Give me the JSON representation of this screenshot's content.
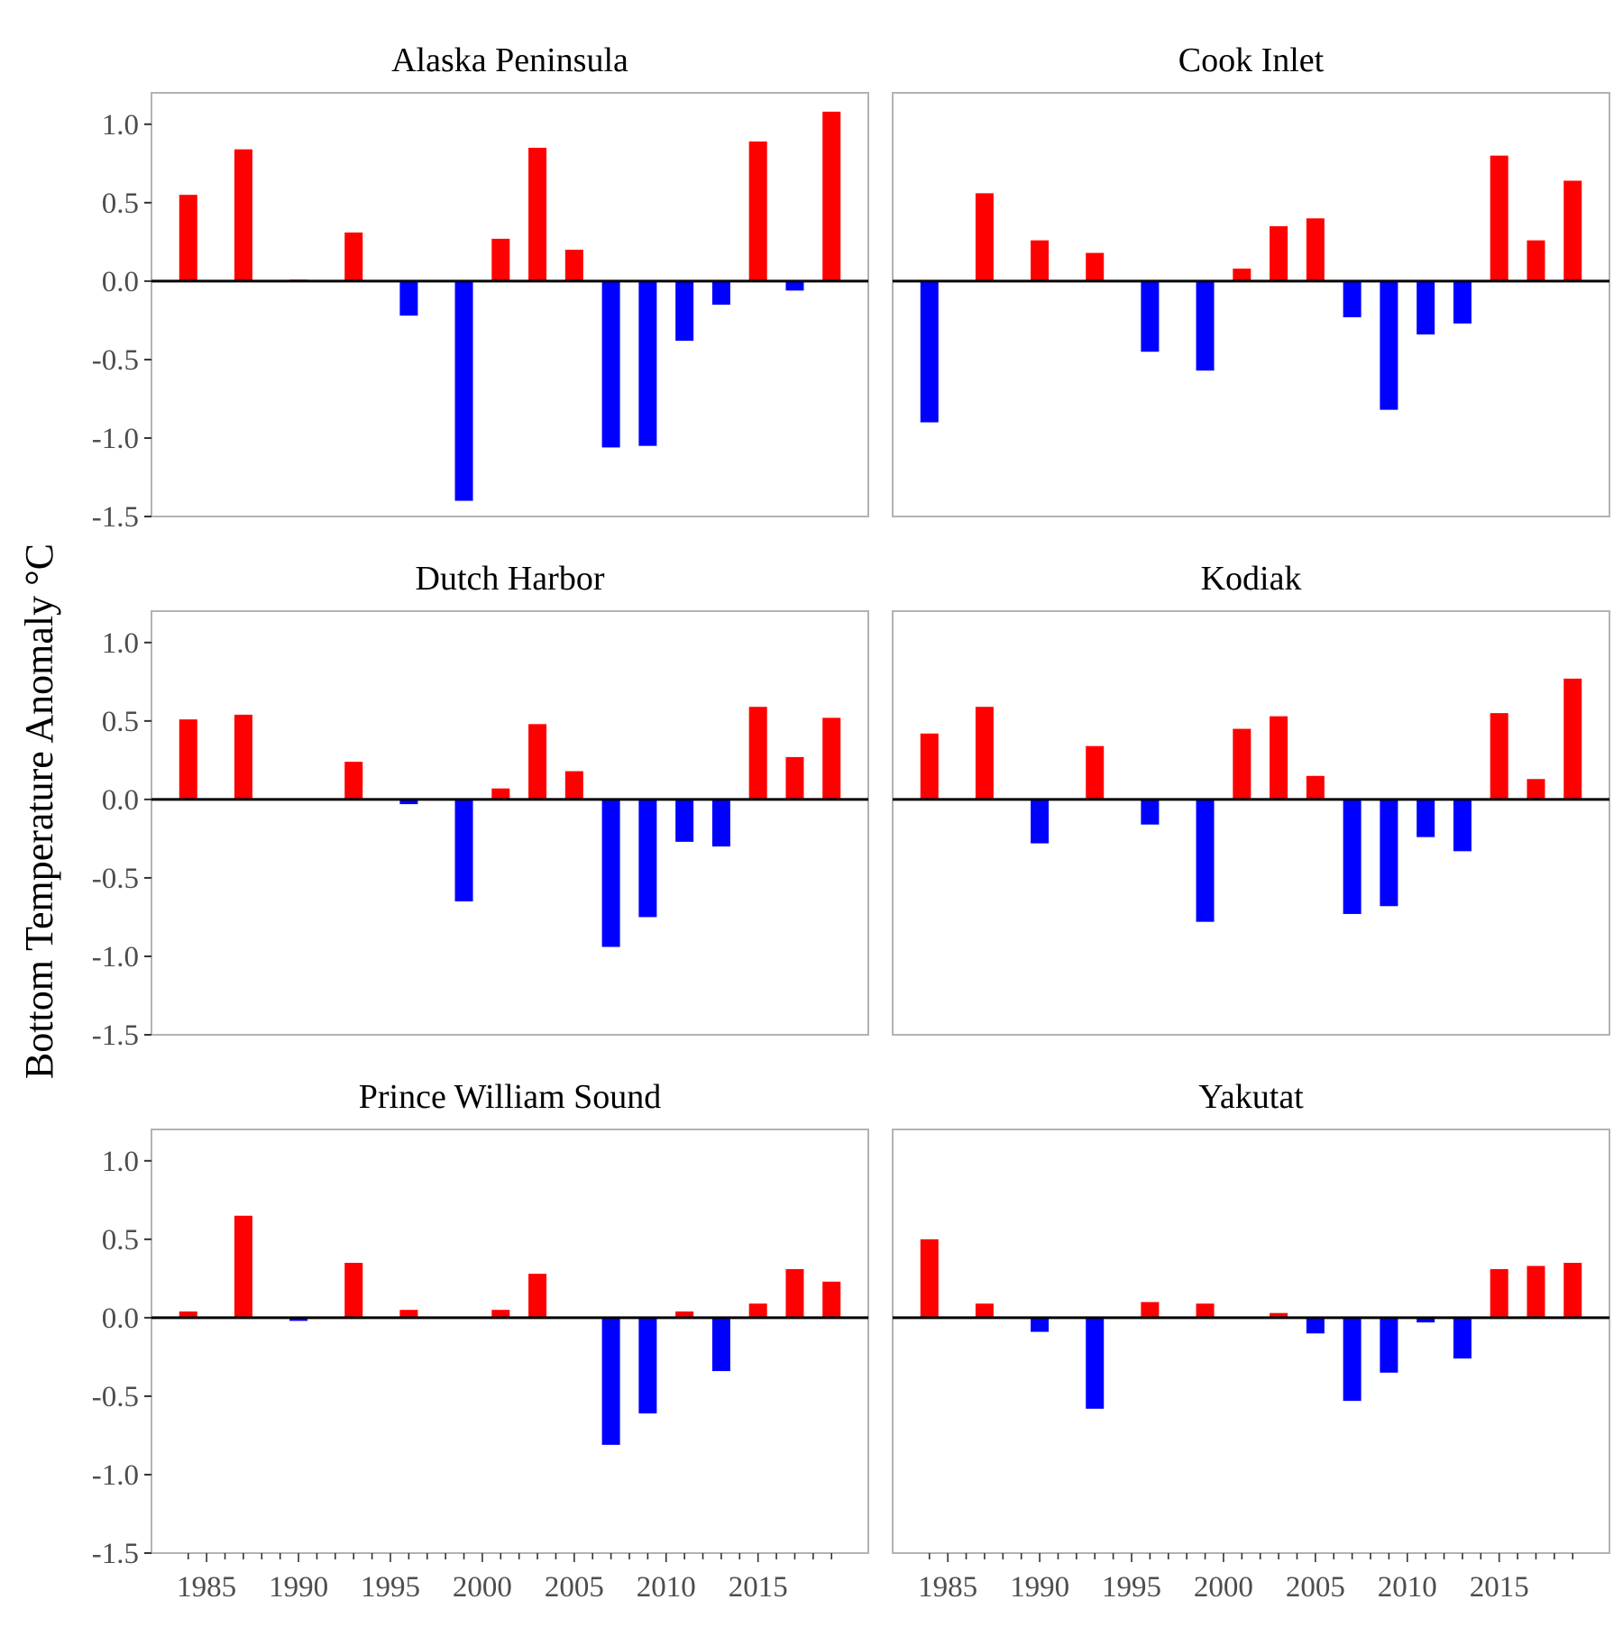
{
  "chart_data": {
    "type": "bar",
    "ylabel": "Bottom Temperature Anomaly °C",
    "ylim": [
      -1.5,
      1.2
    ],
    "xlim": [
      1982,
      2021
    ],
    "yticks": [
      1.0,
      0.5,
      0.0,
      -0.5,
      -1.0,
      -1.5
    ],
    "ytick_labels": [
      "1.0",
      "0.5",
      "0.0",
      "-0.5",
      "-1.0",
      "-1.5"
    ],
    "xticks": [
      1985,
      1990,
      1995,
      2000,
      2005,
      2010,
      2015
    ],
    "xtick_labels": [
      "1985",
      "1990",
      "1995",
      "2000",
      "2005",
      "2010",
      "2015"
    ],
    "grid": false,
    "legend": "none",
    "colors": {
      "positive": "#ff0000",
      "negative": "#0000ff",
      "zero_line": "#000000",
      "panel_border": "#b3b3b3"
    },
    "years": [
      1984,
      1987,
      1990,
      1993,
      1996,
      1999,
      2001,
      2003,
      2005,
      2007,
      2009,
      2011,
      2013,
      2015,
      2017,
      2019
    ],
    "panels": [
      {
        "title": "Alaska Peninsula",
        "values": [
          0.55,
          0.84,
          0.01,
          0.31,
          -0.22,
          -1.4,
          0.27,
          0.85,
          0.2,
          -1.06,
          -1.05,
          -0.38,
          -0.15,
          0.89,
          -0.06,
          1.08
        ]
      },
      {
        "title": "Cook Inlet",
        "values": [
          -0.9,
          0.56,
          0.26,
          0.18,
          -0.45,
          -0.57,
          0.08,
          0.35,
          0.4,
          -0.23,
          -0.82,
          -0.34,
          -0.27,
          0.8,
          0.26,
          0.64
        ]
      },
      {
        "title": "Dutch Harbor",
        "values": [
          0.51,
          0.54,
          null,
          0.24,
          -0.03,
          -0.65,
          0.07,
          0.48,
          0.18,
          -0.94,
          -0.75,
          -0.27,
          -0.3,
          0.59,
          0.27,
          0.52
        ]
      },
      {
        "title": "Kodiak",
        "values": [
          0.42,
          0.59,
          -0.28,
          0.34,
          -0.16,
          -0.78,
          0.45,
          0.53,
          0.15,
          -0.73,
          -0.68,
          -0.24,
          -0.33,
          0.55,
          0.13,
          0.77
        ]
      },
      {
        "title": "Prince William Sound",
        "values": [
          0.04,
          0.65,
          -0.02,
          0.35,
          0.05,
          null,
          0.05,
          0.28,
          null,
          -0.81,
          -0.61,
          0.04,
          -0.34,
          0.09,
          0.31,
          0.23
        ]
      },
      {
        "title": "Yakutat",
        "values": [
          0.5,
          0.09,
          -0.09,
          -0.58,
          0.1,
          0.09,
          null,
          0.03,
          -0.1,
          -0.53,
          -0.35,
          -0.03,
          -0.26,
          0.31,
          0.33,
          0.35
        ]
      }
    ]
  }
}
